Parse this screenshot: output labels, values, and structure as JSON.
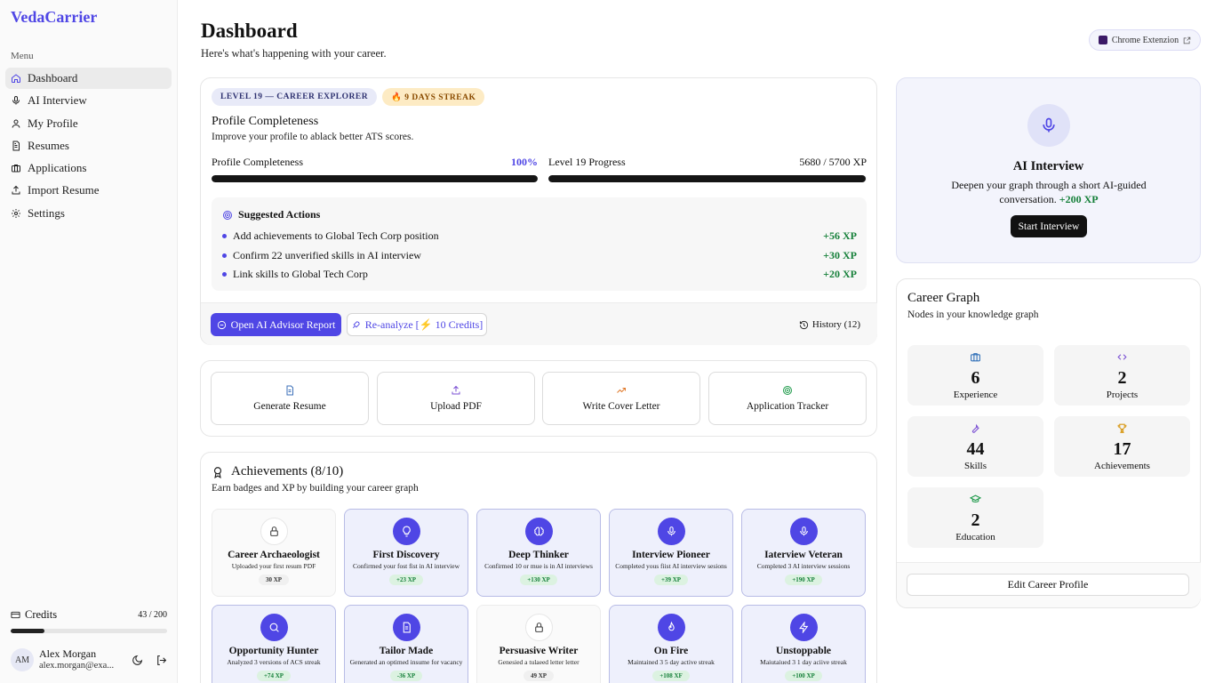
{
  "app": {
    "brand": "VedaCarrier"
  },
  "sidebar": {
    "menu_label": "Menu",
    "items": [
      {
        "label": "Dashboard",
        "icon": "home-icon",
        "active": true
      },
      {
        "label": "AI Interview",
        "icon": "mic-icon"
      },
      {
        "label": "My Profile",
        "icon": "user-icon"
      },
      {
        "label": "Resumes",
        "icon": "document-icon"
      },
      {
        "label": "Applications",
        "icon": "briefcase-icon"
      },
      {
        "label": "Import Resume",
        "icon": "upload-icon"
      },
      {
        "label": "Settings",
        "icon": "gear-icon"
      }
    ],
    "credits": {
      "label": "Credits",
      "value": "43 / 200",
      "used": 43,
      "total": 200
    },
    "user": {
      "initials": "AM",
      "name": "Alex Morgan",
      "email": "alex.morgan@exa..."
    }
  },
  "header": {
    "title": "Dashboard",
    "subtitle": "Here's what's happening with your career.",
    "chrome_extension": "Chrome Extenzion"
  },
  "profile": {
    "level_badge": "LEVEL 19 — CAREER EXPLORER",
    "streak_badge": "🔥 9 DAYS STREAK",
    "title": "Profile Completeness",
    "subtitle": "Improve your profile to ablack better ATS scores.",
    "completeness": {
      "label": "Profile Completeness",
      "value": "100%",
      "percent": 100
    },
    "level_progress": {
      "label": "Level 19 Progress",
      "value": "5680 / 5700 XP",
      "current": 5680,
      "max": 5700
    },
    "suggested_title": "Suggested Actions",
    "suggestions": [
      {
        "text": "Add achievements to Global Tech Corp position",
        "xp": "+56 XP"
      },
      {
        "text": "Confirm 22 unverified skills in AI interview",
        "xp": "+30 XP"
      },
      {
        "text": "Link skills to Global Tech Corp",
        "xp": "+20 XP"
      }
    ],
    "advisor_button": "Open AI Advisor Report",
    "reanalyze_button": "Re-analyze [⚡ 10 Credits]",
    "history_button": "History (12)"
  },
  "quick_actions": [
    {
      "label": "Generate Resume",
      "icon": "document-icon",
      "color": "#3b6fb8"
    },
    {
      "label": "Upload PDF",
      "icon": "upload-icon",
      "color": "#7a4fd3"
    },
    {
      "label": "Write Cover Letter",
      "icon": "trend-up-icon",
      "color": "#e07a2c"
    },
    {
      "label": "Application Tracker",
      "icon": "target-icon",
      "color": "#1e9a4a"
    }
  ],
  "achievements": {
    "title": "Achievements (8/10)",
    "subtitle": "Earn badges and XP by building your career graph",
    "items": [
      {
        "name": "Career Archaeologist",
        "desc": "Uploaded your first resum PDF",
        "xp": "30 XP",
        "earned": false,
        "icon": "lock-icon"
      },
      {
        "name": "First Discovery",
        "desc": "Confirmed your fost fist in AI interview",
        "xp": "+23 XP",
        "earned": true,
        "icon": "lightbulb-icon"
      },
      {
        "name": "Deep Thinker",
        "desc": "Confirmed 10 or mue is in AI interviews",
        "xp": "+130 XP",
        "earned": true,
        "icon": "brain-icon"
      },
      {
        "name": "Interview Pioneer",
        "desc": "Completed yous fiist AI interview sesions",
        "xp": "+39 XP",
        "earned": true,
        "icon": "mic-icon"
      },
      {
        "name": "Iaterview Veteran",
        "desc": "Completed 3 AI interview sessions",
        "xp": "+190 XP",
        "earned": true,
        "icon": "mic-icon"
      },
      {
        "name": "Opportunity Hunter",
        "desc": "Analyzed 3 versions of ACS streak",
        "xp": "+74 XP",
        "earned": true,
        "icon": "search-icon"
      },
      {
        "name": "Tailor Made",
        "desc": "Generated an optimed insume for vacancy",
        "xp": "-36 XP",
        "earned": true,
        "icon": "document-icon"
      },
      {
        "name": "Persuasive Writer",
        "desc": "Genesied a tulaeed letter letter",
        "xp": "49 XP",
        "earned": false,
        "icon": "lock-icon"
      },
      {
        "name": "On Fire",
        "desc": "Maintained 3 5 day active streak",
        "xp": "+108 XF",
        "earned": true,
        "icon": "flame-icon"
      },
      {
        "name": "Unstoppable",
        "desc": "Maiutaiued 3 1 day aciive streak",
        "xp": "+100 XP",
        "earned": true,
        "icon": "bolt-icon"
      }
    ]
  },
  "ai_interview": {
    "title": "AI Interview",
    "desc": "Deepen your graph through a short AI-guided conversation.",
    "xp": "+200 XP",
    "button": "Start Interview"
  },
  "career_graph": {
    "title": "Career Graph",
    "subtitle": "Nodes in your knowledge graph",
    "stats": [
      {
        "num": "6",
        "label": "Experience",
        "icon": "briefcase-icon",
        "color": "#2f6fb8"
      },
      {
        "num": "2",
        "label": "Projects",
        "icon": "code-icon",
        "color": "#7a4fd3"
      },
      {
        "num": "44",
        "label": "Skills",
        "icon": "wrench-icon",
        "color": "#7a4fd3"
      },
      {
        "num": "17",
        "label": "Achievements",
        "icon": "trophy-icon",
        "color": "#d89a1a"
      },
      {
        "num": "2",
        "label": "Education",
        "icon": "graduation-cap-icon",
        "color": "#1e9a4a"
      }
    ],
    "edit_button": "Edit Career Profile"
  },
  "colors": {
    "accent": "#4f46e5",
    "xp_green": "#16803a",
    "streak_bg": "#fdebc4"
  }
}
